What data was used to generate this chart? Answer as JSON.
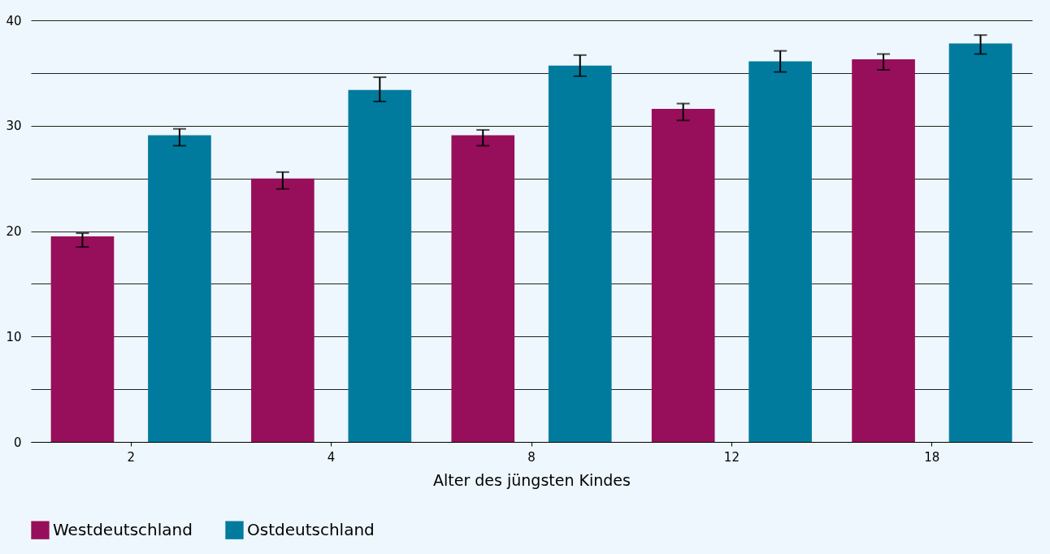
{
  "chart_data": {
    "type": "bar",
    "xlabel": "Alter des jüngsten Kindes",
    "categories": [
      "2",
      "4",
      "8",
      "12",
      "18"
    ],
    "series": [
      {
        "name": "Westdeutschland",
        "color": "#970f5a",
        "values": [
          19.5,
          25.0,
          29.1,
          31.6,
          36.3
        ],
        "errors": [
          [
            18.5,
            19.8
          ],
          [
            24.0,
            25.6
          ],
          [
            28.1,
            29.6
          ],
          [
            30.5,
            32.1
          ],
          [
            35.3,
            36.8
          ]
        ]
      },
      {
        "name": "Ostdeutschland",
        "color": "#007b9e",
        "values": [
          29.1,
          33.4,
          35.7,
          36.1,
          37.8
        ],
        "errors": [
          [
            28.1,
            29.7
          ],
          [
            32.3,
            34.6
          ],
          [
            34.7,
            36.7
          ],
          [
            35.1,
            37.1
          ],
          [
            36.8,
            38.6
          ]
        ]
      }
    ],
    "ylim": [
      0,
      40
    ],
    "yticks": [
      0,
      {
        "value": 5,
        "label": null
      },
      10,
      {
        "value": 15,
        "label": null
      },
      20,
      {
        "value": 25,
        "label": null
      },
      30,
      {
        "value": 35,
        "label": null
      },
      40
    ],
    "grid": "y",
    "legend": "bottom"
  }
}
